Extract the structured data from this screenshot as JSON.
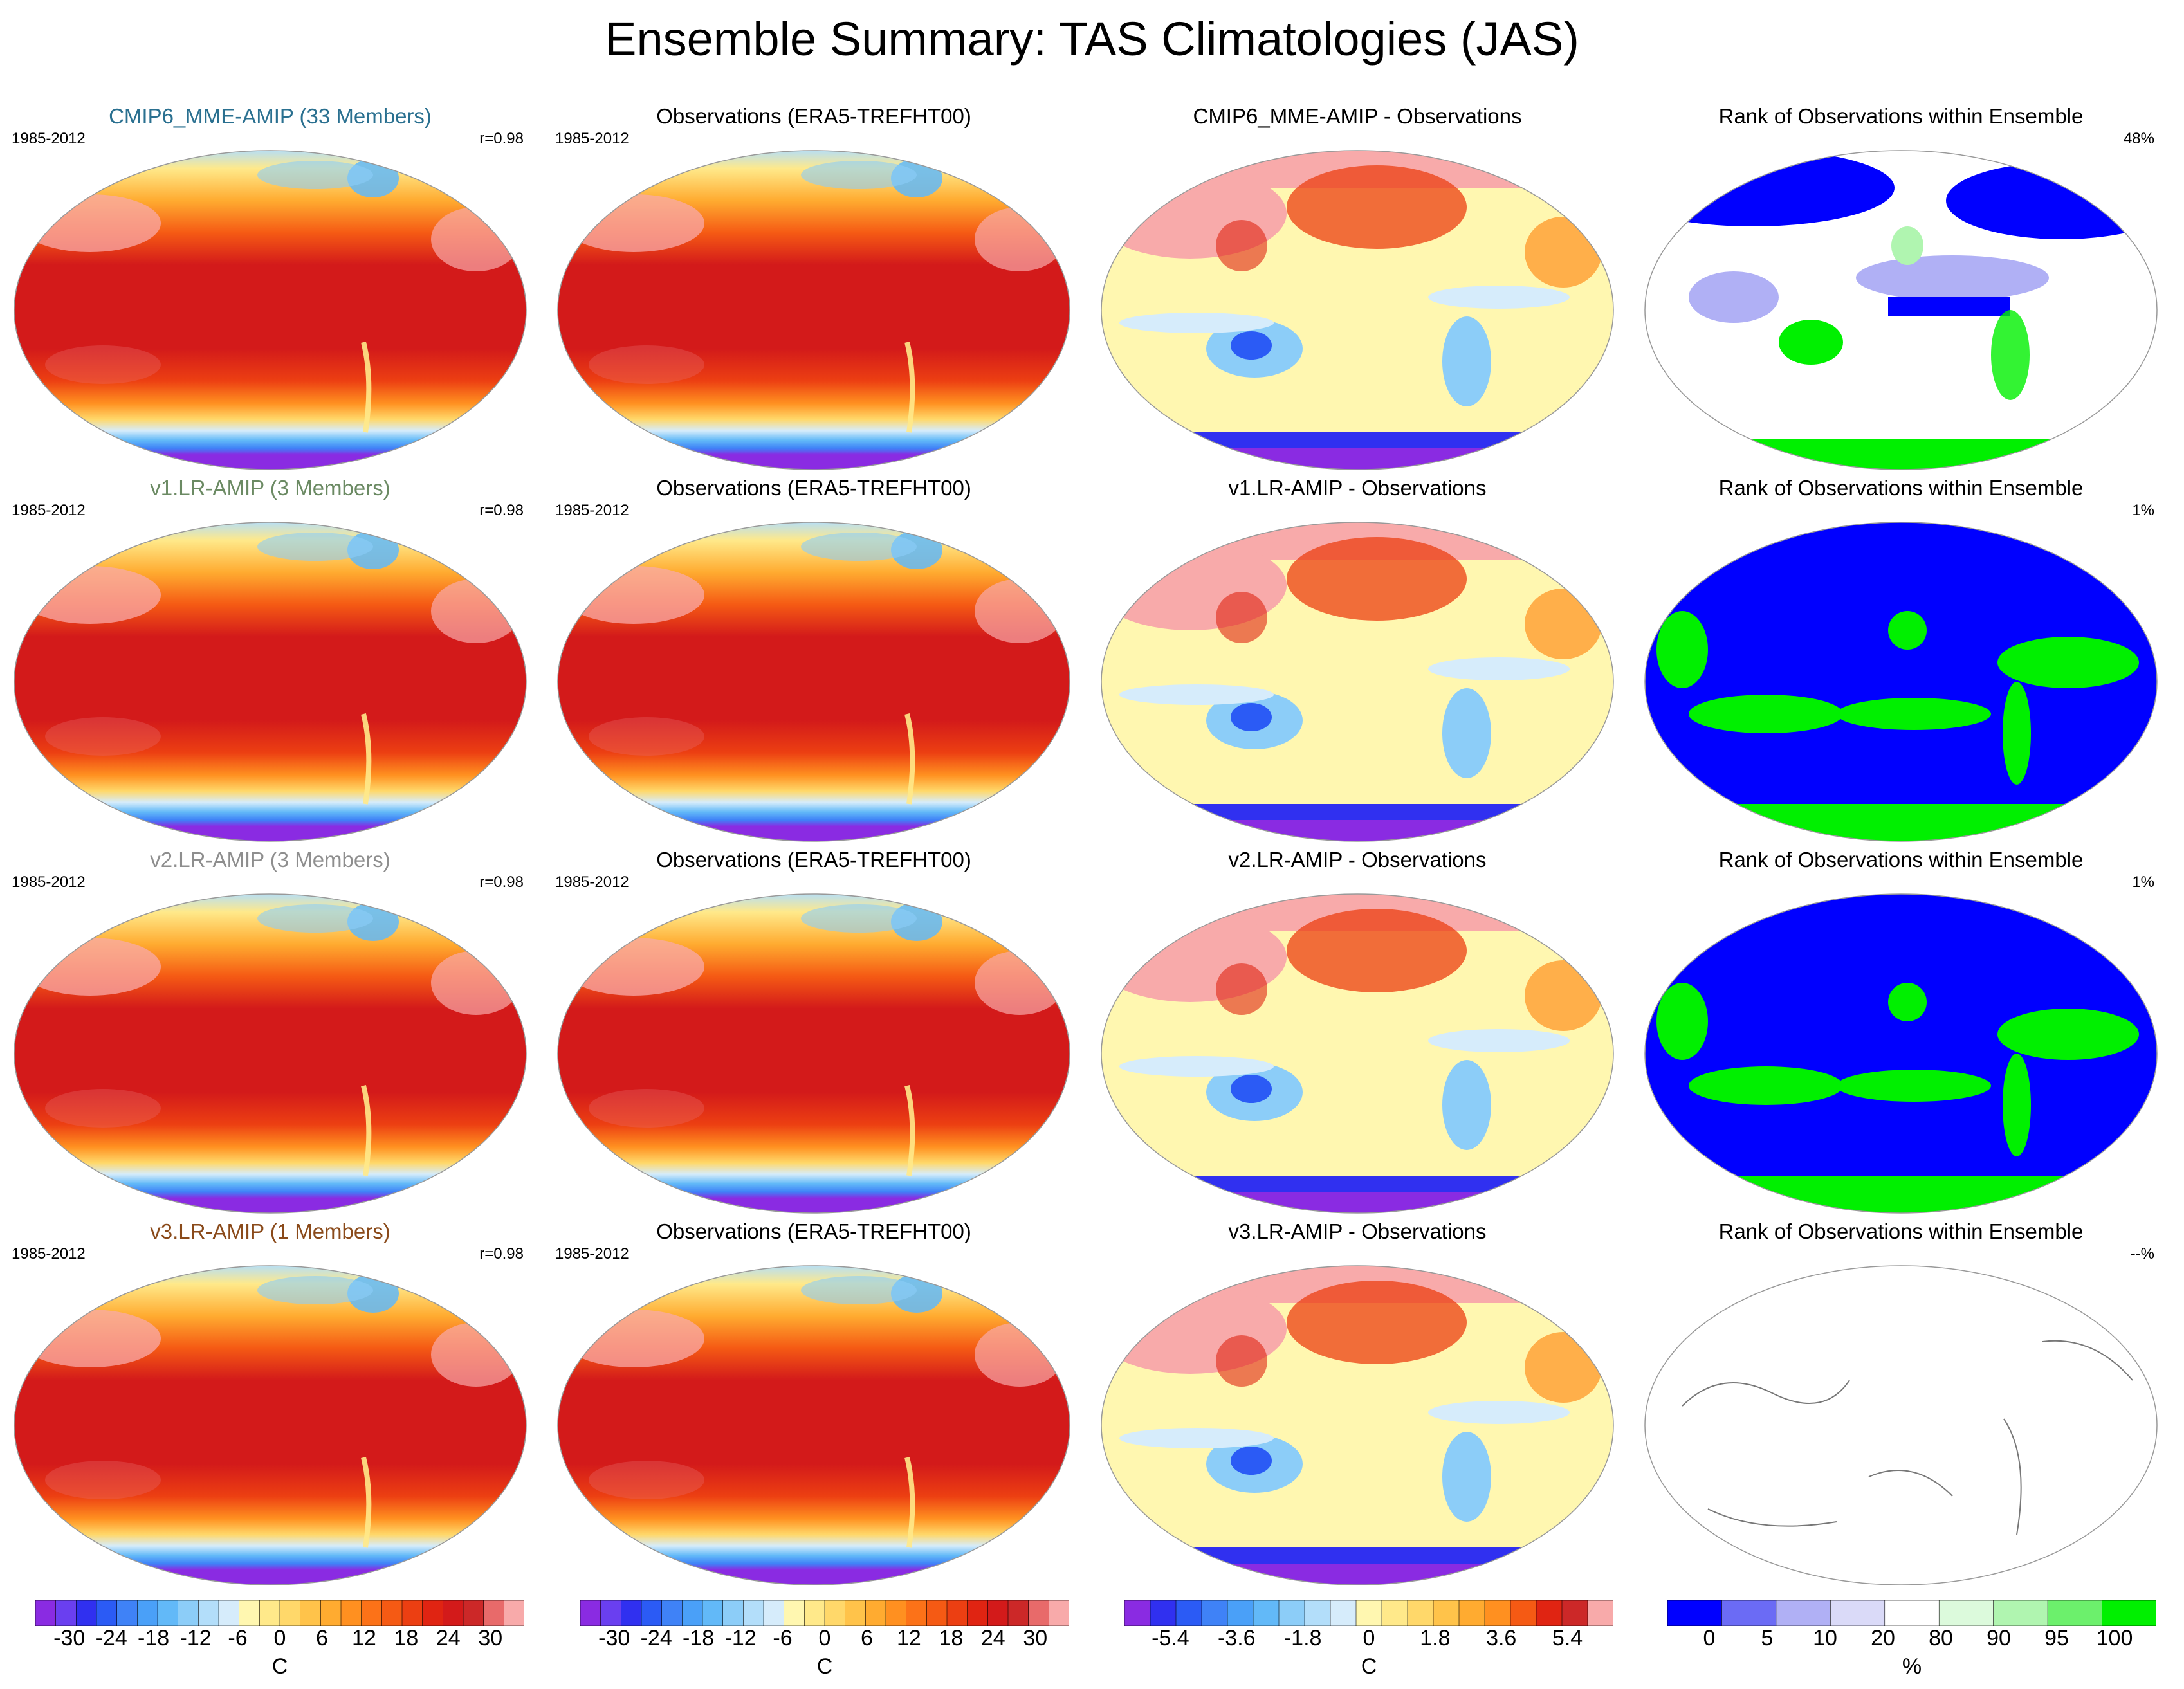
{
  "title": "Ensemble Summary: TAS Climatologies (JAS)",
  "colors": {
    "mme_title": "#2a7090",
    "v1_title": "#6b8a63",
    "v2_title": "#8e8e8e",
    "v3_title": "#8a4a1a"
  },
  "rows": [
    {
      "model": {
        "title": "CMIP6_MME-AMIP (33 Members)",
        "years": "1985-2012",
        "r": "r=0.98"
      },
      "obs": {
        "title": "Observations (ERA5-TREFHT00)",
        "years": "1985-2012"
      },
      "diff": {
        "title": "CMIP6_MME-AMIP - Observations"
      },
      "rank": {
        "title": "Rank of Observations within Ensemble",
        "pct": "48%"
      }
    },
    {
      "model": {
        "title": "v1.LR-AMIP (3 Members)",
        "years": "1985-2012",
        "r": "r=0.98"
      },
      "obs": {
        "title": "Observations (ERA5-TREFHT00)",
        "years": "1985-2012"
      },
      "diff": {
        "title": "v1.LR-AMIP - Observations"
      },
      "rank": {
        "title": "Rank of Observations within Ensemble",
        "pct": "1%"
      }
    },
    {
      "model": {
        "title": "v2.LR-AMIP (3 Members)",
        "years": "1985-2012",
        "r": "r=0.98"
      },
      "obs": {
        "title": "Observations (ERA5-TREFHT00)",
        "years": "1985-2012"
      },
      "diff": {
        "title": "v2.LR-AMIP - Observations"
      },
      "rank": {
        "title": "Rank of Observations within Ensemble",
        "pct": "1%"
      }
    },
    {
      "model": {
        "title": "v3.LR-AMIP (1 Members)",
        "years": "1985-2012",
        "r": "r=0.98"
      },
      "obs": {
        "title": "Observations (ERA5-TREFHT00)",
        "years": "1985-2012"
      },
      "diff": {
        "title": "v3.LR-AMIP - Observations"
      },
      "rank": {
        "title": "Rank of Observations within Ensemble",
        "pct": "--%"
      }
    }
  ],
  "colorbars": {
    "temp": {
      "unit": "C",
      "labels": [
        "-30",
        "-24",
        "-18",
        "-12",
        "-6",
        "0",
        "6",
        "12",
        "18",
        "24",
        "30"
      ],
      "colors": [
        "#8a2be2",
        "#6a3ff0",
        "#3030f0",
        "#2b5bf5",
        "#3f82f7",
        "#4aa0f8",
        "#62b9f8",
        "#8ccdf8",
        "#b3defa",
        "#d6ecfb",
        "#fff7b0",
        "#ffe98a",
        "#ffd86a",
        "#ffc34a",
        "#ffab30",
        "#ff9020",
        "#fc7218",
        "#f55a14",
        "#ec3f12",
        "#e02412",
        "#d31a1a",
        "#cc2828",
        "#e86a6a",
        "#f8aaaa"
      ]
    },
    "diff": {
      "unit": "C",
      "labels": [
        "-5.4",
        "-3.6",
        "-1.8",
        "0",
        "1.8",
        "3.6",
        "5.4"
      ],
      "colors": [
        "#8a2be2",
        "#3030f0",
        "#2b5bf5",
        "#3f82f7",
        "#4aa0f8",
        "#62b9f8",
        "#8ccdf8",
        "#b3defa",
        "#d6ecfb",
        "#fff7b0",
        "#ffe98a",
        "#ffd86a",
        "#ffc34a",
        "#ffab30",
        "#ff9020",
        "#f55a14",
        "#e02412",
        "#cc2828",
        "#f8aaaa"
      ]
    },
    "rank": {
      "unit": "%",
      "labels": [
        "0",
        "5",
        "10",
        "20",
        "80",
        "90",
        "95",
        "100"
      ],
      "colors": [
        "#0000ff",
        "#6b6bf5",
        "#b0b0f5",
        "#dadaf8",
        "#ffffff",
        "#dcfadc",
        "#b0f5b0",
        "#6cf06c",
        "#00f000"
      ]
    }
  }
}
